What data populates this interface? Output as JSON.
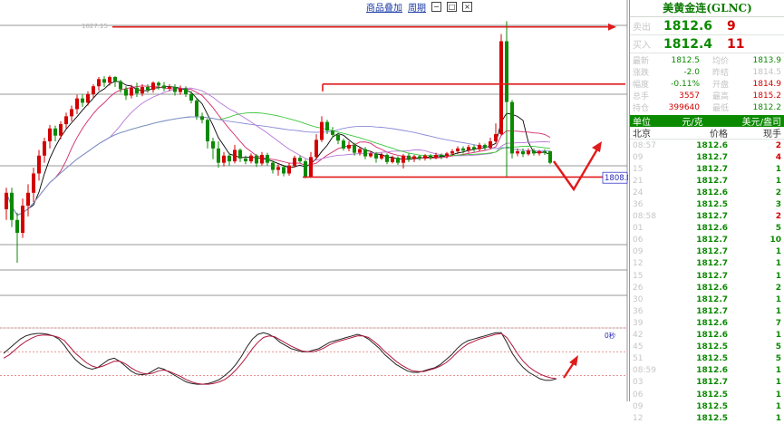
{
  "toolbar": {
    "overlay_link": "商品叠加",
    "period_link": "周期"
  },
  "chart_data": [
    {
      "type": "candlestick",
      "candles": [
        {
          "o": 1804.5,
          "c": 1806.8,
          "h": 1807.5,
          "l": 1803.0
        },
        {
          "o": 1806.8,
          "c": 1803.0,
          "h": 1807.5,
          "l": 1802.0
        },
        {
          "o": 1803.0,
          "c": 1801.2,
          "h": 1804.0,
          "l": 1797.0
        },
        {
          "o": 1801.2,
          "c": 1805.0,
          "h": 1806.0,
          "l": 1800.5
        },
        {
          "o": 1805.0,
          "c": 1806.8,
          "h": 1808.0,
          "l": 1803.5
        },
        {
          "o": 1806.8,
          "c": 1809.5,
          "h": 1810.3,
          "l": 1805.5
        },
        {
          "o": 1809.5,
          "c": 1812.0,
          "h": 1812.8,
          "l": 1808.5
        },
        {
          "o": 1812.0,
          "c": 1814.0,
          "h": 1814.5,
          "l": 1811.0
        },
        {
          "o": 1814.0,
          "c": 1815.8,
          "h": 1816.3,
          "l": 1813.0
        },
        {
          "o": 1815.8,
          "c": 1814.8,
          "h": 1816.2,
          "l": 1814.0
        },
        {
          "o": 1814.8,
          "c": 1816.4,
          "h": 1816.8,
          "l": 1814.3
        },
        {
          "o": 1816.4,
          "c": 1817.5,
          "h": 1818.0,
          "l": 1815.8
        },
        {
          "o": 1817.5,
          "c": 1818.5,
          "h": 1819.0,
          "l": 1816.8
        },
        {
          "o": 1818.5,
          "c": 1820.0,
          "h": 1820.5,
          "l": 1817.8
        },
        {
          "o": 1820.0,
          "c": 1819.4,
          "h": 1820.6,
          "l": 1818.8
        },
        {
          "o": 1819.4,
          "c": 1820.6,
          "h": 1821.0,
          "l": 1819.0
        },
        {
          "o": 1820.6,
          "c": 1821.7,
          "h": 1822.0,
          "l": 1820.0
        },
        {
          "o": 1821.7,
          "c": 1822.7,
          "h": 1823.0,
          "l": 1821.1
        },
        {
          "o": 1822.7,
          "c": 1822.2,
          "h": 1823.1,
          "l": 1821.6
        },
        {
          "o": 1822.2,
          "c": 1823.0,
          "h": 1823.2,
          "l": 1821.8
        },
        {
          "o": 1823.0,
          "c": 1822.4,
          "h": 1823.1,
          "l": 1821.6
        },
        {
          "o": 1822.4,
          "c": 1821.3,
          "h": 1822.6,
          "l": 1820.8
        },
        {
          "o": 1821.3,
          "c": 1820.4,
          "h": 1821.7,
          "l": 1819.8
        },
        {
          "o": 1820.4,
          "c": 1821.5,
          "h": 1821.9,
          "l": 1820.0
        },
        {
          "o": 1821.5,
          "c": 1820.7,
          "h": 1822.2,
          "l": 1820.2
        },
        {
          "o": 1820.7,
          "c": 1821.6,
          "h": 1822.0,
          "l": 1820.3
        },
        {
          "o": 1821.6,
          "c": 1821.2,
          "h": 1822.0,
          "l": 1820.8
        },
        {
          "o": 1821.2,
          "c": 1822.2,
          "h": 1822.4,
          "l": 1820.8
        },
        {
          "o": 1822.2,
          "c": 1821.8,
          "h": 1822.4,
          "l": 1821.2
        },
        {
          "o": 1821.8,
          "c": 1821.4,
          "h": 1822.3,
          "l": 1821.0
        },
        {
          "o": 1821.4,
          "c": 1821.6,
          "h": 1822.0,
          "l": 1821.0
        },
        {
          "o": 1821.6,
          "c": 1820.9,
          "h": 1822.0,
          "l": 1820.4
        },
        {
          "o": 1820.9,
          "c": 1821.4,
          "h": 1821.8,
          "l": 1820.5
        },
        {
          "o": 1821.4,
          "c": 1820.6,
          "h": 1821.7,
          "l": 1820.2
        },
        {
          "o": 1820.6,
          "c": 1819.7,
          "h": 1821.0,
          "l": 1819.3
        },
        {
          "o": 1819.7,
          "c": 1817.5,
          "h": 1820.0,
          "l": 1817.0
        },
        {
          "o": 1817.5,
          "c": 1817.0,
          "h": 1818.0,
          "l": 1816.5
        },
        {
          "o": 1817.0,
          "c": 1814.0,
          "h": 1817.2,
          "l": 1813.0
        },
        {
          "o": 1814.0,
          "c": 1813.0,
          "h": 1814.5,
          "l": 1811.5
        },
        {
          "o": 1813.0,
          "c": 1811.0,
          "h": 1814.0,
          "l": 1810.3
        },
        {
          "o": 1811.0,
          "c": 1812.0,
          "h": 1812.5,
          "l": 1810.5
        },
        {
          "o": 1812.0,
          "c": 1811.2,
          "h": 1812.4,
          "l": 1810.6
        },
        {
          "o": 1811.2,
          "c": 1812.8,
          "h": 1813.5,
          "l": 1810.9
        },
        {
          "o": 1812.8,
          "c": 1811.6,
          "h": 1813.0,
          "l": 1811.1
        },
        {
          "o": 1811.6,
          "c": 1811.2,
          "h": 1812.0,
          "l": 1810.8
        },
        {
          "o": 1811.2,
          "c": 1812.0,
          "h": 1812.3,
          "l": 1810.9
        },
        {
          "o": 1812.0,
          "c": 1810.9,
          "h": 1812.2,
          "l": 1810.4
        },
        {
          "o": 1810.9,
          "c": 1812.1,
          "h": 1812.5,
          "l": 1810.6
        },
        {
          "o": 1812.1,
          "c": 1811.0,
          "h": 1812.4,
          "l": 1810.6
        },
        {
          "o": 1811.0,
          "c": 1810.0,
          "h": 1811.3,
          "l": 1809.5
        },
        {
          "o": 1810.0,
          "c": 1810.4,
          "h": 1810.8,
          "l": 1809.2
        },
        {
          "o": 1810.4,
          "c": 1809.5,
          "h": 1810.7,
          "l": 1809.1
        },
        {
          "o": 1809.5,
          "c": 1810.6,
          "h": 1811.0,
          "l": 1809.2
        },
        {
          "o": 1810.6,
          "c": 1811.7,
          "h": 1812.0,
          "l": 1810.3
        },
        {
          "o": 1811.7,
          "c": 1811.2,
          "h": 1812.0,
          "l": 1810.9
        },
        {
          "o": 1811.2,
          "c": 1809.0,
          "h": 1811.5,
          "l": 1808.8
        },
        {
          "o": 1809.0,
          "c": 1811.8,
          "h": 1812.5,
          "l": 1808.9
        },
        {
          "o": 1811.8,
          "c": 1814.2,
          "h": 1815.0,
          "l": 1811.5
        },
        {
          "o": 1814.2,
          "c": 1816.7,
          "h": 1817.5,
          "l": 1813.9
        },
        {
          "o": 1816.7,
          "c": 1815.5,
          "h": 1817.0,
          "l": 1815.0
        },
        {
          "o": 1815.5,
          "c": 1814.9,
          "h": 1816.0,
          "l": 1814.5
        },
        {
          "o": 1814.9,
          "c": 1814.1,
          "h": 1815.2,
          "l": 1813.6
        },
        {
          "o": 1814.1,
          "c": 1813.0,
          "h": 1814.4,
          "l": 1812.7
        },
        {
          "o": 1813.0,
          "c": 1813.5,
          "h": 1814.0,
          "l": 1812.6
        },
        {
          "o": 1813.5,
          "c": 1812.4,
          "h": 1813.8,
          "l": 1812.0
        },
        {
          "o": 1812.4,
          "c": 1812.9,
          "h": 1813.2,
          "l": 1812.0
        },
        {
          "o": 1812.9,
          "c": 1811.9,
          "h": 1813.2,
          "l": 1811.5
        },
        {
          "o": 1811.9,
          "c": 1812.3,
          "h": 1812.6,
          "l": 1811.7
        },
        {
          "o": 1812.3,
          "c": 1811.6,
          "h": 1812.5,
          "l": 1811.0
        },
        {
          "o": 1811.6,
          "c": 1812.1,
          "h": 1812.4,
          "l": 1811.4
        },
        {
          "o": 1812.1,
          "c": 1811.1,
          "h": 1812.3,
          "l": 1810.8
        },
        {
          "o": 1811.1,
          "c": 1811.7,
          "h": 1812.0,
          "l": 1810.9
        },
        {
          "o": 1811.7,
          "c": 1811.0,
          "h": 1811.9,
          "l": 1810.7
        },
        {
          "o": 1811.0,
          "c": 1812.0,
          "h": 1812.2,
          "l": 1810.2
        },
        {
          "o": 1812.0,
          "c": 1811.5,
          "h": 1812.3,
          "l": 1811.1
        },
        {
          "o": 1811.5,
          "c": 1811.9,
          "h": 1812.1,
          "l": 1811.1
        },
        {
          "o": 1811.9,
          "c": 1811.6,
          "h": 1812.1,
          "l": 1811.3
        },
        {
          "o": 1811.6,
          "c": 1812.0,
          "h": 1812.2,
          "l": 1811.3
        },
        {
          "o": 1812.0,
          "c": 1811.7,
          "h": 1812.2,
          "l": 1811.4
        },
        {
          "o": 1811.7,
          "c": 1812.1,
          "h": 1812.4,
          "l": 1811.5
        },
        {
          "o": 1812.1,
          "c": 1811.9,
          "h": 1812.3,
          "l": 1811.5
        },
        {
          "o": 1811.9,
          "c": 1812.3,
          "h": 1812.5,
          "l": 1811.6
        },
        {
          "o": 1812.3,
          "c": 1812.6,
          "h": 1812.9,
          "l": 1812.0
        },
        {
          "o": 1812.6,
          "c": 1813.0,
          "h": 1813.3,
          "l": 1812.2
        },
        {
          "o": 1813.0,
          "c": 1812.7,
          "h": 1813.3,
          "l": 1812.3
        },
        {
          "o": 1812.7,
          "c": 1813.2,
          "h": 1813.5,
          "l": 1812.4
        },
        {
          "o": 1813.2,
          "c": 1812.9,
          "h": 1813.5,
          "l": 1812.5
        },
        {
          "o": 1812.9,
          "c": 1813.5,
          "h": 1813.8,
          "l": 1812.6
        },
        {
          "o": 1813.5,
          "c": 1813.1,
          "h": 1813.7,
          "l": 1812.8
        },
        {
          "o": 1813.1,
          "c": 1814.0,
          "h": 1814.5,
          "l": 1812.9
        },
        {
          "o": 1814.0,
          "c": 1815.0,
          "h": 1816.5,
          "l": 1813.7
        },
        {
          "o": 1815.0,
          "c": 1828.0,
          "h": 1829.0,
          "l": 1814.8
        },
        {
          "o": 1828.0,
          "c": 1819.5,
          "h": 1830.8,
          "l": 1808.9
        },
        {
          "o": 1819.5,
          "c": 1812.3,
          "h": 1819.8,
          "l": 1811.6
        },
        {
          "o": 1812.3,
          "c": 1812.6,
          "h": 1813.0,
          "l": 1811.9
        },
        {
          "o": 1812.6,
          "c": 1812.2,
          "h": 1813.0,
          "l": 1811.8
        },
        {
          "o": 1812.2,
          "c": 1812.7,
          "h": 1813.0,
          "l": 1812.0
        },
        {
          "o": 1812.7,
          "c": 1812.3,
          "h": 1813.0,
          "l": 1812.0
        },
        {
          "o": 1812.3,
          "c": 1812.6,
          "h": 1812.8,
          "l": 1812.0
        },
        {
          "o": 1812.6,
          "c": 1812.4,
          "h": 1812.9,
          "l": 1812.1
        },
        {
          "o": 1812.6,
          "c": 1811.0,
          "h": 1812.7,
          "l": 1810.8
        }
      ],
      "price_range": [
        1796.0,
        1832.5
      ],
      "resistance_levels": [
        1830.0,
        1822.0
      ],
      "support_level": 1809.0,
      "current_price_label": "1808.8",
      "header_label": "1827.15",
      "moving_average_colors": [
        "#000000",
        "#d6266c",
        "#b877d8",
        "#3cc63c",
        "#8a8ad8"
      ],
      "candle_up_color": "#d40000",
      "candle_down_color": "#0b8a00"
    },
    {
      "type": "line",
      "indicator_label": "0秒",
      "series": [
        {
          "color": "#222222",
          "values": [
            48,
            54,
            60,
            66,
            70,
            72,
            73,
            73,
            72,
            70,
            66,
            58,
            48,
            40,
            34,
            30,
            28,
            30,
            35,
            40,
            42,
            38,
            32,
            26,
            22,
            21,
            22,
            26,
            30,
            28,
            24,
            20,
            16,
            12,
            10,
            9,
            9,
            10,
            12,
            15,
            20,
            26,
            34,
            44,
            56,
            66,
            72,
            74,
            72,
            68,
            62,
            58,
            54,
            52,
            50,
            50,
            52,
            54,
            58,
            62,
            64,
            66,
            68,
            70,
            72,
            70,
            66,
            60,
            54,
            46,
            40,
            34,
            30,
            26,
            24,
            24,
            26,
            28,
            30,
            34,
            40,
            46,
            54,
            60,
            64,
            66,
            68,
            70,
            72,
            74,
            74,
            62,
            48,
            38,
            30,
            24,
            20,
            16,
            14,
            14,
            16
          ]
        },
        {
          "color": "#b0163c",
          "values": [
            42,
            46,
            52,
            58,
            63,
            67,
            70,
            71,
            71,
            70,
            68,
            64,
            56,
            48,
            42,
            36,
            32,
            30,
            32,
            35,
            38,
            38,
            35,
            30,
            26,
            23,
            22,
            23,
            26,
            27,
            25,
            22,
            19,
            15,
            12,
            10,
            9,
            9,
            10,
            12,
            15,
            20,
            27,
            35,
            44,
            54,
            62,
            68,
            70,
            69,
            65,
            61,
            57,
            54,
            51,
            50,
            50,
            52,
            55,
            59,
            62,
            64,
            66,
            68,
            70,
            70,
            68,
            63,
            57,
            50,
            44,
            38,
            33,
            29,
            26,
            25,
            25,
            27,
            29,
            32,
            36,
            42,
            49,
            55,
            60,
            63,
            66,
            68,
            70,
            72,
            73,
            68,
            58,
            47,
            38,
            31,
            26,
            22,
            19,
            17,
            16
          ]
        }
      ],
      "ylim": [
        0,
        80
      ],
      "grid_levels": [
        20,
        50,
        80
      ]
    }
  ],
  "panel": {
    "title": "美黄金连(GLNC)",
    "ask": {
      "label": "卖出",
      "price": "1812.6",
      "volume": "9"
    },
    "bid": {
      "label": "买入",
      "price": "1812.4",
      "volume": "11"
    },
    "stats": [
      {
        "label1": "最新",
        "value1": "1812.5",
        "color1": "#0b8a00",
        "label2": "均价",
        "value2": "1813.9",
        "color2": "#0b8a00"
      },
      {
        "label1": "涨跌",
        "value1": "-2.0",
        "color1": "#0b8a00",
        "label2": "昨结",
        "value2": "1814.5",
        "color2": "#c3c3c3"
      },
      {
        "label1": "幅度",
        "value1": "-0.11%",
        "color1": "#0b8a00",
        "label2": "开盘",
        "value2": "1814.9",
        "color2": "#d40000"
      },
      {
        "label1": "总手",
        "value1": "3557",
        "color1": "#d40000",
        "label2": "最高",
        "value2": "1815.2",
        "color2": "#d40000"
      },
      {
        "label1": "持仓",
        "value1": "399640",
        "color1": "#d40000",
        "label2": "最低",
        "value2": "1812.2",
        "color2": "#0b8a00"
      }
    ],
    "unit_bar": {
      "label": "单位",
      "unit1": "元/克",
      "unit2": "美元/盎司"
    },
    "table_header": {
      "time": "北京",
      "price": "价格",
      "volume": "现手"
    },
    "ticks": [
      {
        "time": "08:57",
        "price": "1812.6",
        "vol": "2",
        "vcolor": "#d40000"
      },
      {
        "time": "09",
        "price": "1812.7",
        "vol": "4",
        "vcolor": "#d40000"
      },
      {
        "time": "15",
        "price": "1812.7",
        "vol": "1",
        "vcolor": "#0b8a00"
      },
      {
        "time": "21",
        "price": "1812.7",
        "vol": "1",
        "vcolor": "#0b8a00"
      },
      {
        "time": "24",
        "price": "1812.6",
        "vol": "2",
        "vcolor": "#0b8a00"
      },
      {
        "time": "36",
        "price": "1812.5",
        "vol": "3",
        "vcolor": "#0b8a00"
      },
      {
        "time": "08:58",
        "price": "1812.7",
        "vol": "2",
        "vcolor": "#d40000"
      },
      {
        "time": "01",
        "price": "1812.6",
        "vol": "5",
        "vcolor": "#0b8a00"
      },
      {
        "time": "06",
        "price": "1812.7",
        "vol": "10",
        "vcolor": "#0b8a00"
      },
      {
        "time": "09",
        "price": "1812.7",
        "vol": "1",
        "vcolor": "#0b8a00"
      },
      {
        "time": "12",
        "price": "1812.7",
        "vol": "1",
        "vcolor": "#0b8a00"
      },
      {
        "time": "15",
        "price": "1812.7",
        "vol": "1",
        "vcolor": "#0b8a00"
      },
      {
        "time": "26",
        "price": "1812.6",
        "vol": "2",
        "vcolor": "#0b8a00"
      },
      {
        "time": "30",
        "price": "1812.7",
        "vol": "1",
        "vcolor": "#0b8a00"
      },
      {
        "time": "36",
        "price": "1812.7",
        "vol": "1",
        "vcolor": "#0b8a00"
      },
      {
        "time": "39",
        "price": "1812.6",
        "vol": "7",
        "vcolor": "#0b8a00"
      },
      {
        "time": "42",
        "price": "1812.6",
        "vol": "1",
        "vcolor": "#0b8a00"
      },
      {
        "time": "45",
        "price": "1812.5",
        "vol": "5",
        "vcolor": "#0b8a00"
      },
      {
        "time": "51",
        "price": "1812.5",
        "vol": "5",
        "vcolor": "#0b8a00"
      },
      {
        "time": "08:59",
        "price": "1812.6",
        "vol": "1",
        "vcolor": "#0b8a00"
      },
      {
        "time": "03",
        "price": "1812.7",
        "vol": "1",
        "vcolor": "#0b8a00"
      },
      {
        "time": "06",
        "price": "1812.5",
        "vol": "1",
        "vcolor": "#0b8a00"
      },
      {
        "time": "09",
        "price": "1812.5",
        "vol": "1",
        "vcolor": "#0b8a00"
      },
      {
        "time": "12",
        "price": "1812.5",
        "vol": "1",
        "vcolor": "#0b8a00"
      }
    ]
  }
}
